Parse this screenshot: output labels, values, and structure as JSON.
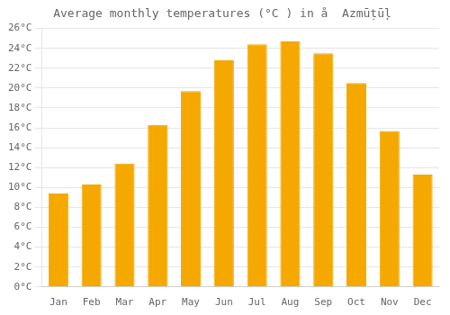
{
  "chart_data": {
    "type": "bar",
    "title": "Average monthly temperatures (°C ) in å  Azmūṭūļ",
    "categories": [
      "Jan",
      "Feb",
      "Mar",
      "Apr",
      "May",
      "Jun",
      "Jul",
      "Aug",
      "Sep",
      "Oct",
      "Nov",
      "Dec"
    ],
    "values": [
      9.4,
      10.3,
      12.4,
      16.3,
      19.7,
      22.8,
      24.4,
      24.7,
      23.5,
      20.5,
      15.7,
      11.3
    ],
    "color": "#F5A800",
    "ylim": [
      0,
      26
    ],
    "yticks": [
      {
        "value": 0,
        "label": "0°C"
      },
      {
        "value": 2,
        "label": "2°C"
      },
      {
        "value": 4,
        "label": "4°C"
      },
      {
        "value": 6,
        "label": "6°C"
      },
      {
        "value": 8,
        "label": "8°C"
      },
      {
        "value": 10,
        "label": "10°C"
      },
      {
        "value": 12,
        "label": "12°C"
      },
      {
        "value": 14,
        "label": "14°C"
      },
      {
        "value": 16,
        "label": "16°C"
      },
      {
        "value": 18,
        "label": "18°C"
      },
      {
        "value": 20,
        "label": "20°C"
      },
      {
        "value": 22,
        "label": "22°C"
      },
      {
        "value": 24,
        "label": "24°C"
      },
      {
        "value": 26,
        "label": "26°C"
      }
    ],
    "grid": true
  }
}
